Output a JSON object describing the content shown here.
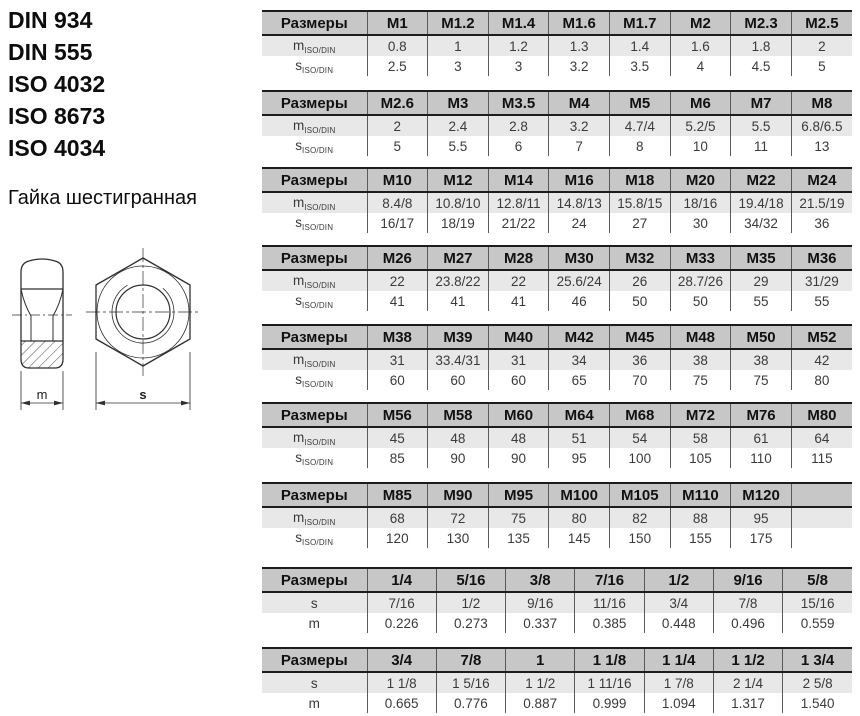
{
  "left_panel": {
    "standards": [
      "DIN 934",
      "DIN 555",
      "ISO 4032",
      "ISO 8673",
      "ISO 4034"
    ],
    "product_name": "Гайка шестигранная"
  },
  "drawing": {
    "m_label": "m",
    "s_label": "s"
  },
  "table_labels": {
    "size_header": "Размеры"
  },
  "colors": {
    "header_bg": "#c7c7c7",
    "shaded_row_bg": "#e8e8e8",
    "border": "#1c1c1c",
    "grid_line": "#5a5a5a"
  },
  "tables": [
    {
      "columns": [
        "M1",
        "M1.2",
        "M1.4",
        "M1.6",
        "M1.7",
        "M2",
        "M2.3",
        "M2.5"
      ],
      "rows": [
        {
          "base": "m",
          "sub": "ISO/DIN",
          "shaded": true,
          "values": [
            "0.8",
            "1",
            "1.2",
            "1.3",
            "1.4",
            "1.6",
            "1.8",
            "2"
          ]
        },
        {
          "base": "s",
          "sub": "ISO/DIN",
          "shaded": false,
          "values": [
            "2.5",
            "3",
            "3",
            "3.2",
            "3.5",
            "4",
            "4.5",
            "5"
          ]
        }
      ]
    },
    {
      "columns": [
        "M2.6",
        "M3",
        "M3.5",
        "M4",
        "M5",
        "M6",
        "M7",
        "M8"
      ],
      "rows": [
        {
          "base": "m",
          "sub": "ISO/DIN",
          "shaded": true,
          "values": [
            "2",
            "2.4",
            "2.8",
            "3.2",
            "4.7/4",
            "5.2/5",
            "5.5",
            "6.8/6.5"
          ]
        },
        {
          "base": "s",
          "sub": "ISO/DIN",
          "shaded": false,
          "values": [
            "5",
            "5.5",
            "6",
            "7",
            "8",
            "10",
            "11",
            "13"
          ]
        }
      ]
    },
    {
      "columns": [
        "M10",
        "M12",
        "M14",
        "M16",
        "M18",
        "M20",
        "M22",
        "M24"
      ],
      "rows": [
        {
          "base": "m",
          "sub": "ISO/DIN",
          "shaded": true,
          "values": [
            "8.4/8",
            "10.8/10",
            "12.8/11",
            "14.8/13",
            "15.8/15",
            "18/16",
            "19.4/18",
            "21.5/19"
          ]
        },
        {
          "base": "s",
          "sub": "ISO/DIN",
          "shaded": false,
          "values": [
            "16/17",
            "18/19",
            "21/22",
            "24",
            "27",
            "30",
            "34/32",
            "36"
          ]
        }
      ]
    },
    {
      "columns": [
        "M26",
        "M27",
        "M28",
        "M30",
        "M32",
        "M33",
        "M35",
        "M36"
      ],
      "rows": [
        {
          "base": "m",
          "sub": "ISO/DIN",
          "shaded": true,
          "values": [
            "22",
            "23.8/22",
            "22",
            "25.6/24",
            "26",
            "28.7/26",
            "29",
            "31/29"
          ]
        },
        {
          "base": "s",
          "sub": "ISO/DIN",
          "shaded": false,
          "values": [
            "41",
            "41",
            "41",
            "46",
            "50",
            "50",
            "55",
            "55"
          ]
        }
      ]
    },
    {
      "columns": [
        "M38",
        "M39",
        "M40",
        "M42",
        "M45",
        "M48",
        "M50",
        "M52"
      ],
      "rows": [
        {
          "base": "m",
          "sub": "ISO/DIN",
          "shaded": true,
          "values": [
            "31",
            "33.4/31",
            "31",
            "34",
            "36",
            "38",
            "38",
            "42"
          ]
        },
        {
          "base": "s",
          "sub": "ISO/DIN",
          "shaded": false,
          "values": [
            "60",
            "60",
            "60",
            "65",
            "70",
            "75",
            "75",
            "80"
          ]
        }
      ]
    },
    {
      "columns": [
        "M56",
        "M58",
        "M60",
        "M64",
        "M68",
        "M72",
        "M76",
        "M80"
      ],
      "rows": [
        {
          "base": "m",
          "sub": "ISO/DIN",
          "shaded": true,
          "values": [
            "45",
            "48",
            "48",
            "51",
            "54",
            "58",
            "61",
            "64"
          ]
        },
        {
          "base": "s",
          "sub": "ISO/DIN",
          "shaded": false,
          "values": [
            "85",
            "90",
            "90",
            "95",
            "100",
            "105",
            "110",
            "115"
          ]
        }
      ]
    },
    {
      "columns": [
        "M85",
        "M90",
        "M95",
        "M100",
        "M105",
        "M110",
        "M120",
        ""
      ],
      "rows": [
        {
          "base": "m",
          "sub": "ISO/DIN",
          "shaded": true,
          "values": [
            "68",
            "72",
            "75",
            "80",
            "82",
            "88",
            "95",
            ""
          ]
        },
        {
          "base": "s",
          "sub": "ISO/DIN",
          "shaded": false,
          "values": [
            "120",
            "130",
            "135",
            "145",
            "150",
            "155",
            "175",
            ""
          ]
        }
      ]
    },
    {
      "columns": [
        "1/4",
        "5/16",
        "3/8",
        "7/16",
        "1/2",
        "9/16",
        "5/8"
      ],
      "rows": [
        {
          "base": "s",
          "sub": "",
          "shaded": true,
          "values": [
            "7/16",
            "1/2",
            "9/16",
            "11/16",
            "3/4",
            "7/8",
            "15/16"
          ]
        },
        {
          "base": "m",
          "sub": "",
          "shaded": false,
          "values": [
            "0.226",
            "0.273",
            "0.337",
            "0.385",
            "0.448",
            "0.496",
            "0.559"
          ]
        }
      ]
    },
    {
      "columns": [
        "3/4",
        "7/8",
        "1",
        "1 1/8",
        "1 1/4",
        "1 1/2",
        "1 3/4"
      ],
      "rows": [
        {
          "base": "s",
          "sub": "",
          "shaded": true,
          "values": [
            "1 1/8",
            "1 5/16",
            "1 1/2",
            "1 11/16",
            "1 7/8",
            "2 1/4",
            "2 5/8"
          ]
        },
        {
          "base": "m",
          "sub": "",
          "shaded": false,
          "values": [
            "0.665",
            "0.776",
            "0.887",
            "0.999",
            "1.094",
            "1.317",
            "1.540"
          ]
        }
      ]
    }
  ]
}
